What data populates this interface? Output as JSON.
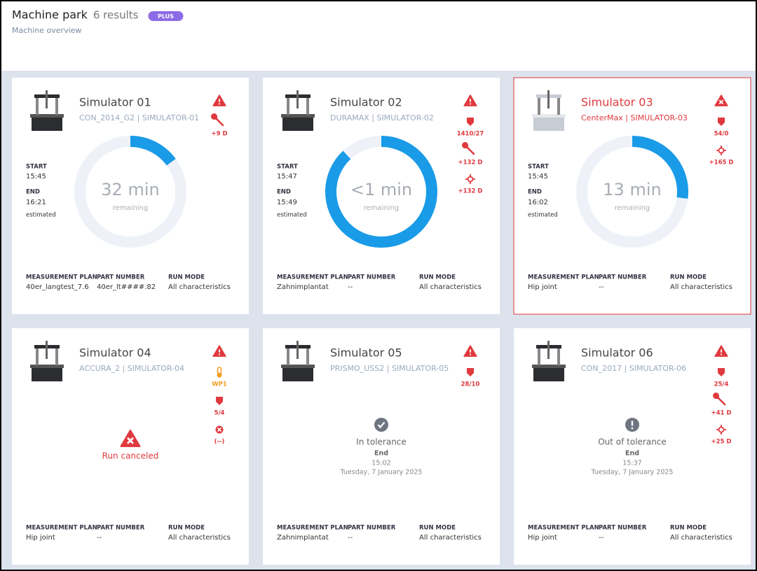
{
  "header": {
    "title": "Machine park",
    "count": "6 results",
    "badge": "PLUS",
    "subtitle": "Machine overview"
  },
  "labels": {
    "start": "START",
    "end": "END",
    "estimated": "estimated",
    "remaining": "remaining",
    "plan": "MEASUREMENT PLAN",
    "part": "PART NUMBER",
    "mode": "RUN MODE",
    "end_result": "End"
  },
  "machines": [
    {
      "name": "Simulator 01",
      "detail": "CON_2014_G2 | SIMULATOR-01",
      "alert": "warning",
      "selected": false,
      "indicators": [
        {
          "icon": "wrench",
          "color": "#e0393e",
          "label": "+9 D"
        }
      ],
      "state": "running",
      "start": "15:45",
      "end": "16:21",
      "remaining": "32 min",
      "progress": 15,
      "plan": "40er_langtest_7.6",
      "part": "40er_lt####.82",
      "mode": "All characteristics"
    },
    {
      "name": "Simulator 02",
      "detail": "DURAMAX | SIMULATOR-02",
      "alert": "warning",
      "selected": false,
      "indicators": [
        {
          "icon": "probe",
          "color": "#e0393e",
          "label": "1410/27"
        },
        {
          "icon": "wrench",
          "color": "#e0393e",
          "label": "+132 D"
        },
        {
          "icon": "crosshair",
          "color": "#e0393e",
          "label": "+132 D"
        }
      ],
      "state": "running",
      "start": "15:47",
      "end": "15:49",
      "remaining": "<1 min",
      "progress": 88,
      "plan": "Zahnimplantat",
      "part": "--",
      "mode": "All characteristics"
    },
    {
      "name": "Simulator 03",
      "detail": "CenterMax | SIMULATOR-03",
      "alert": "error",
      "selected": true,
      "indicators": [
        {
          "icon": "probe",
          "color": "#e0393e",
          "label": "54/0"
        },
        {
          "icon": "crosshair",
          "color": "#e0393e",
          "label": "+165 D"
        }
      ],
      "state": "running",
      "start": "15:45",
      "end": "16:02",
      "remaining": "13 min",
      "progress": 27,
      "plan": "Hip joint",
      "part": "--",
      "mode": "All characteristics"
    },
    {
      "name": "Simulator 04",
      "detail": "ACCURA_2 | SIMULATOR-04",
      "alert": "warning",
      "selected": false,
      "indicators": [
        {
          "icon": "thermo",
          "color": "#f0a020",
          "label": "WP1"
        },
        {
          "icon": "probe",
          "color": "#e0393e",
          "label": "5/4"
        },
        {
          "icon": "xcircle",
          "color": "#e0393e",
          "label": "(--)"
        }
      ],
      "state": "canceled",
      "result": "Run canceled",
      "plan": "Hip joint",
      "part": "--",
      "mode": "All characteristics"
    },
    {
      "name": "Simulator 05",
      "detail": "PRISMO_USS2 | SIMULATOR-05",
      "alert": "warning",
      "selected": false,
      "indicators": [
        {
          "icon": "probe",
          "color": "#e0393e",
          "label": "28/10"
        }
      ],
      "state": "finished",
      "result_icon": "check",
      "result": "In tolerance",
      "end": "15:02",
      "date": "Tuesday, 7 January 2025",
      "plan": "Zahnimplantat",
      "part": "--",
      "mode": "All characteristics"
    },
    {
      "name": "Simulator 06",
      "detail": "CON_2017 | SIMULATOR-06",
      "alert": "warning",
      "selected": false,
      "indicators": [
        {
          "icon": "probe",
          "color": "#e0393e",
          "label": "25/4"
        },
        {
          "icon": "wrench",
          "color": "#e0393e",
          "label": "+41 D"
        },
        {
          "icon": "crosshair",
          "color": "#e0393e",
          "label": "+25 D"
        }
      ],
      "state": "finished",
      "result_icon": "info",
      "result": "Out of tolerance",
      "end": "15:37",
      "date": "Tuesday, 7 January 2025",
      "plan": "Hip joint",
      "part": "--",
      "mode": "All characteristics"
    }
  ]
}
